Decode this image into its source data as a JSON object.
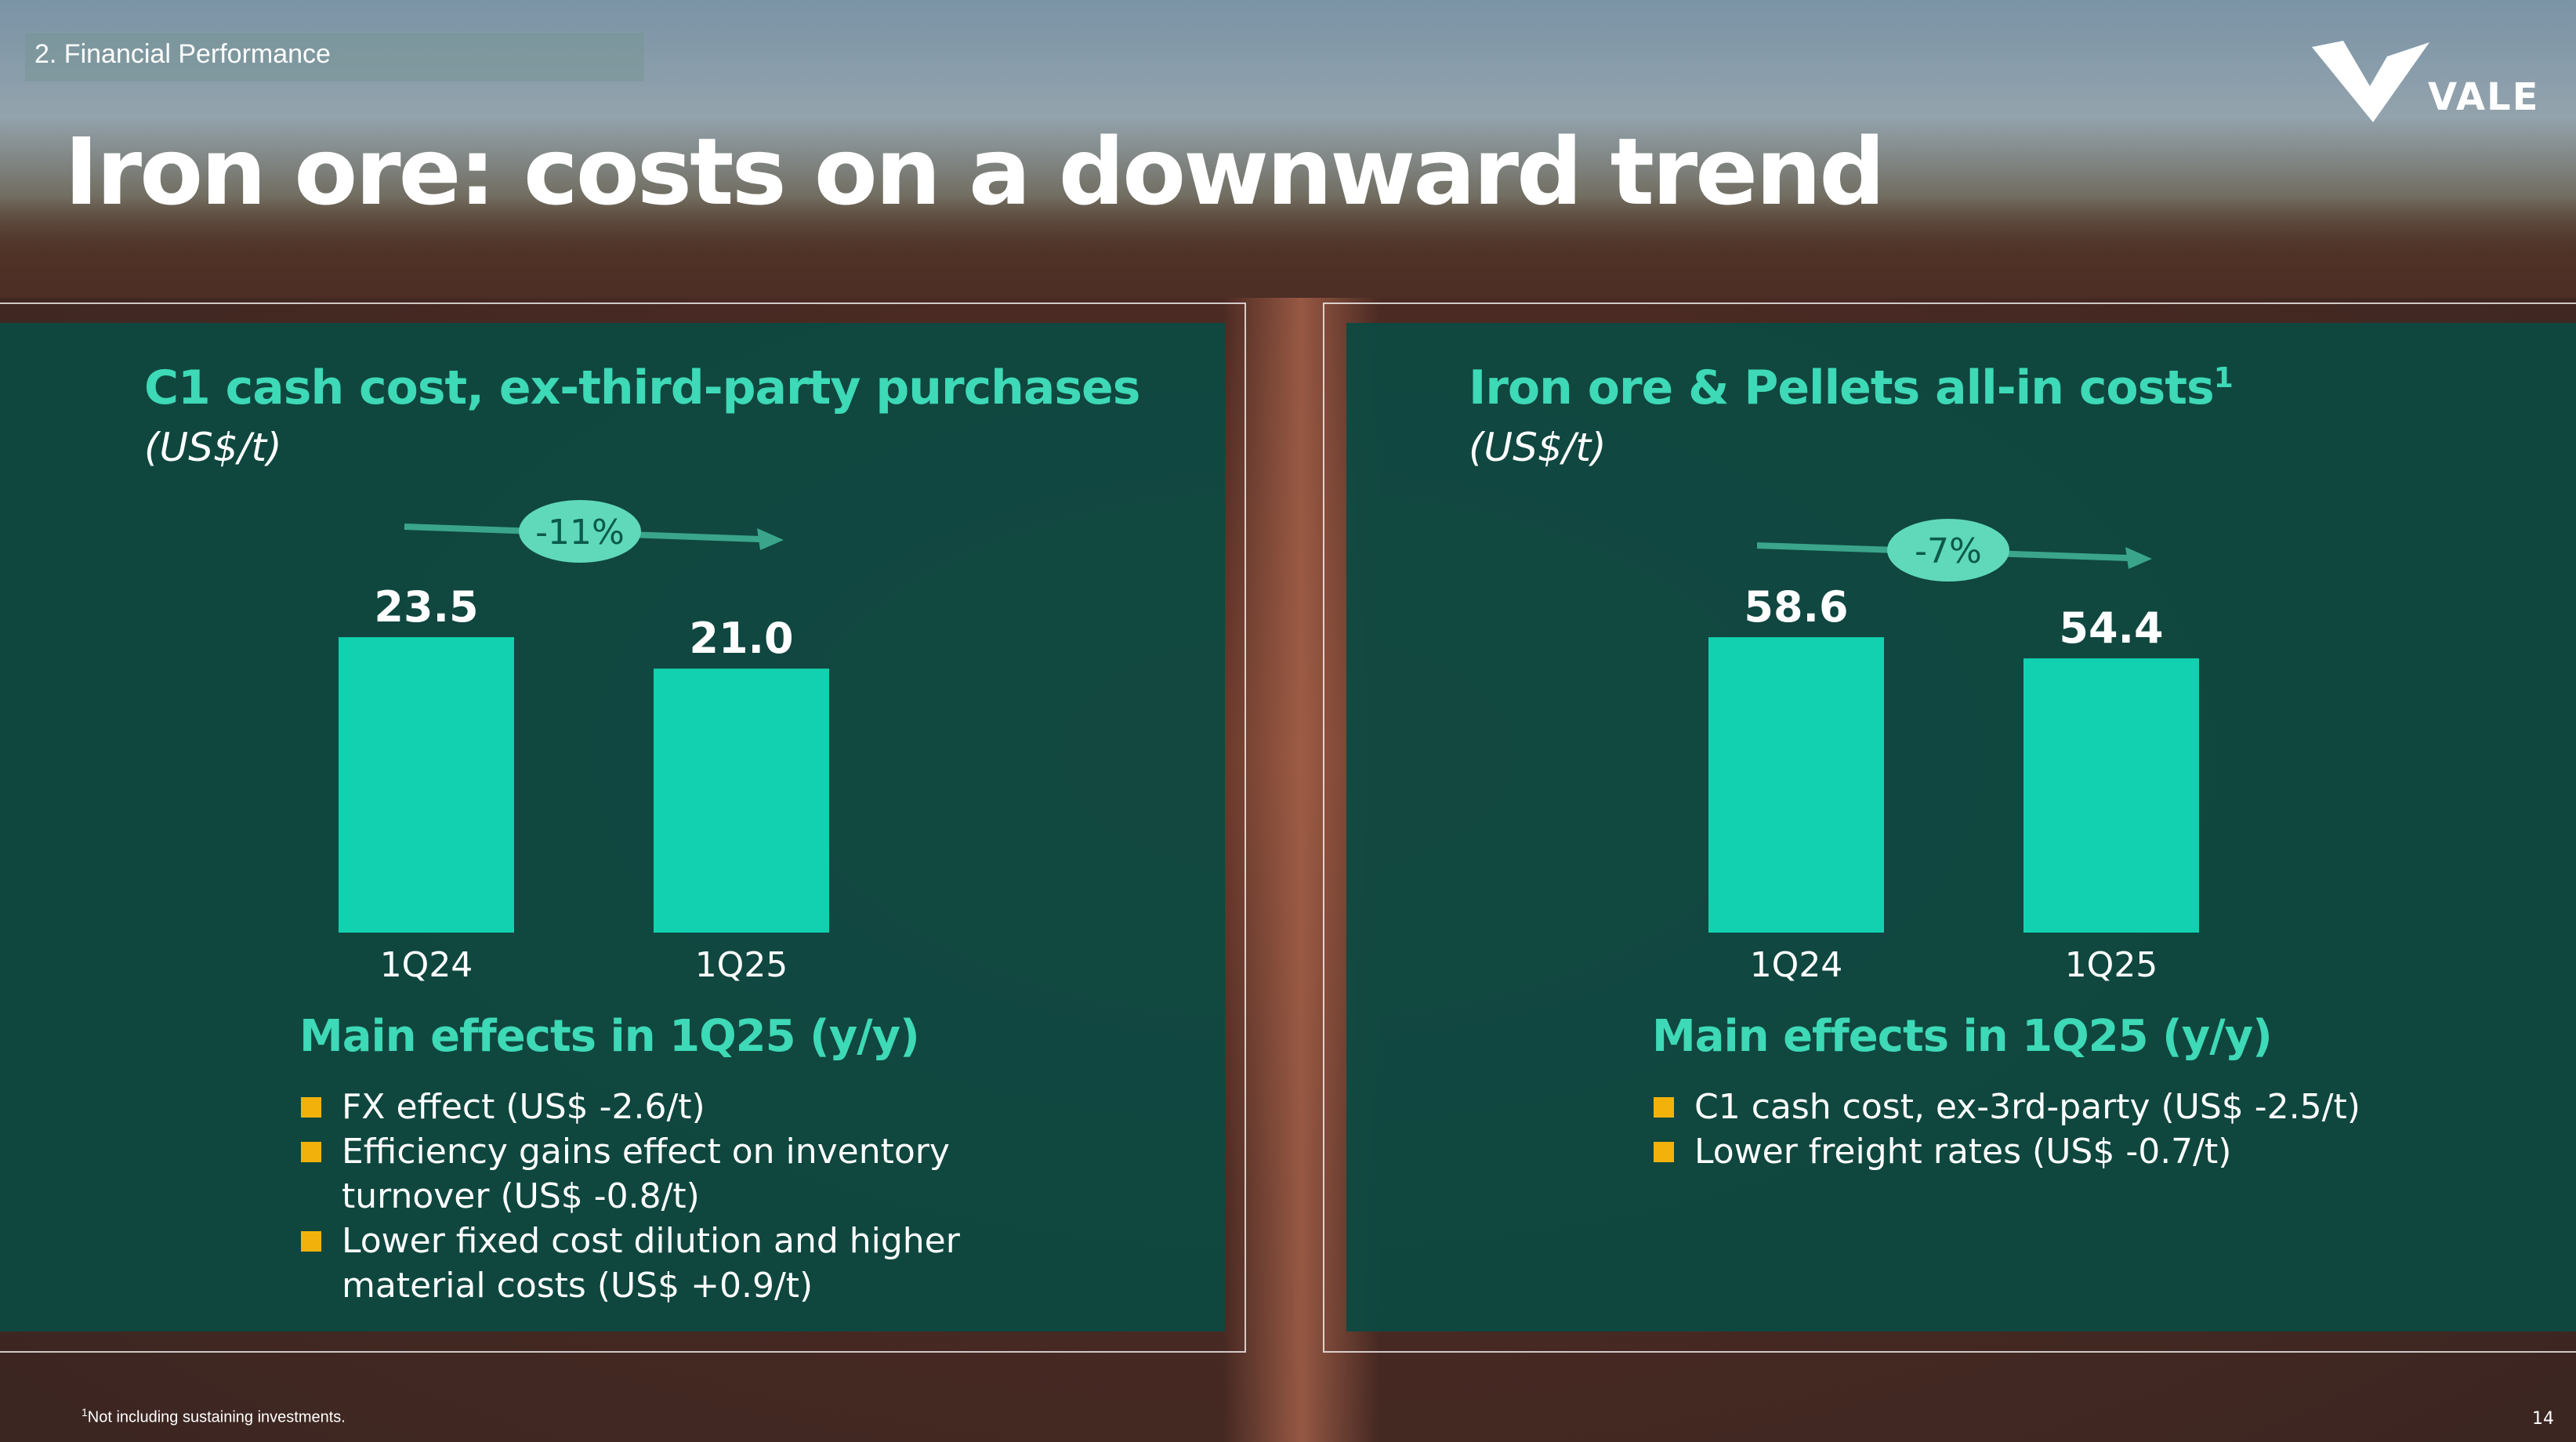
{
  "section_label": "2. Financial Performance",
  "title": "Iron ore: costs on a downward trend",
  "logo_text": "VALE",
  "colors": {
    "panel_bg": "#0b4a42",
    "accent": "#3ed9b6",
    "bar": "#12d1b0",
    "badge": "#5fd9b9",
    "bullet": "#f2b20b"
  },
  "chart_data": [
    {
      "type": "bar",
      "title": "C1 cash cost, ex-third-party purchases",
      "title_sup": "",
      "unit": "(US$/t)",
      "categories": [
        "1Q24",
        "1Q25"
      ],
      "values": [
        23.5,
        21.0
      ],
      "value_labels": [
        "23.5",
        "21.0"
      ],
      "change_label": "-11%",
      "ylim": [
        0,
        25.56
      ]
    },
    {
      "type": "bar",
      "title": "Iron ore & Pellets all-in costs",
      "title_sup": "1",
      "unit": "(US$/t)",
      "categories": [
        "1Q24",
        "1Q25"
      ],
      "values": [
        58.6,
        54.4
      ],
      "value_labels": [
        "58.6",
        "54.4"
      ],
      "change_label": "-7%",
      "ylim": [
        0,
        63.74
      ]
    }
  ],
  "effects": [
    {
      "title": "Main effects in 1Q25 (y/y)",
      "items": [
        "FX effect (US$ -2.6/t)",
        "Efficiency gains effect on inventory turnover (US$ -0.8/t)",
        "Lower fixed cost dilution and higher material costs (US$ +0.9/t)"
      ]
    },
    {
      "title": "Main effects in 1Q25 (y/y)",
      "items": [
        "C1 cash cost, ex-3rd-party (US$ -2.5/t)",
        "Lower freight rates (US$ -0.7/t)"
      ]
    }
  ],
  "footnote": {
    "sup": "1",
    "text": "Not including sustaining investments."
  },
  "page_number": "14"
}
